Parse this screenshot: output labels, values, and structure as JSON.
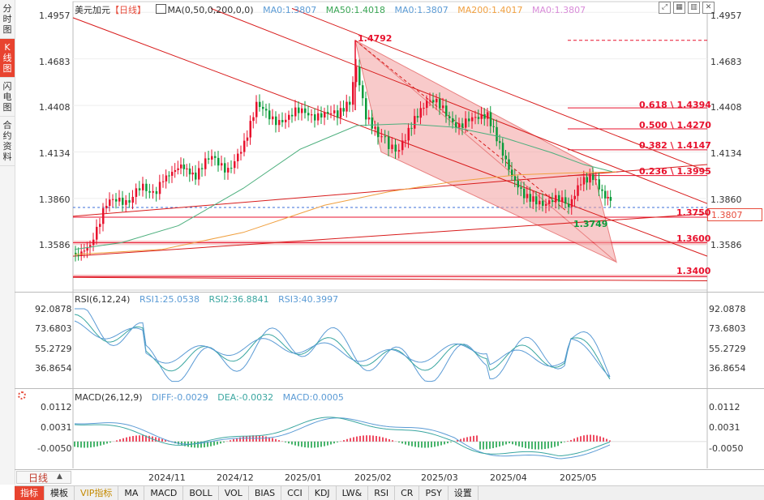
{
  "sidebar": {
    "items": [
      {
        "label": "分时图",
        "active": false
      },
      {
        "label": "K线图",
        "active": true
      },
      {
        "label": "闪电图",
        "active": false
      },
      {
        "label": "合约资料",
        "active": false
      }
    ]
  },
  "header": {
    "symbol": "美元加元",
    "period_tag": "【日线】",
    "ma_params": "MA(0,50,0,200,0,0)",
    "ma_values": [
      {
        "label": "MA0:1.3807",
        "color": "#5b9bd5"
      },
      {
        "label": "MA50:1.4018",
        "color": "#3aa655"
      },
      {
        "label": "MA0:1.3807",
        "color": "#5b9bd5"
      },
      {
        "label": "MA200:1.4017",
        "color": "#f0a040"
      },
      {
        "label": "MA0:1.3807",
        "color": "#d98cd9"
      }
    ]
  },
  "colors": {
    "up": "#e8112d",
    "down": "#0a9b3a",
    "ma50": "#4caf7d",
    "ma200": "#f0a040",
    "fib": "#e8112d",
    "channel": "#d81b1b",
    "shade": "#f3a0a0"
  },
  "price_axis": {
    "ticks": [
      "1.4957",
      "1.4683",
      "1.4408",
      "1.4134",
      "1.3860",
      "1.3586"
    ],
    "current": "1.3807"
  },
  "annotations": {
    "high_label": "1.4792",
    "low_label": "1.3749",
    "fib_levels": [
      {
        "label": "0.618 \\ 1.4394",
        "value": 1.4394
      },
      {
        "label": "0.500 \\ 1.4270",
        "value": 1.427
      },
      {
        "label": "0.382 \\ 1.4147",
        "value": 1.4147
      },
      {
        "label": "0.236 \\ 1.3995",
        "value": 1.3995
      }
    ],
    "levels": [
      {
        "label": "1.3750",
        "value": 1.375
      },
      {
        "label": "1.3600",
        "value": 1.36
      },
      {
        "label": "1.3400",
        "value": 1.34
      }
    ]
  },
  "rsi": {
    "header": "RSI(6,12,24)",
    "values": [
      {
        "label": "RSI1:25.0538",
        "color": "#5b9bd5"
      },
      {
        "label": "RSI2:36.8841",
        "color": "#3aa6a0"
      },
      {
        "label": "RSI3:40.3997",
        "color": "#5b9bd5"
      }
    ],
    "ticks": [
      "92.0878",
      "73.6803",
      "55.2729",
      "36.8654"
    ]
  },
  "macd": {
    "header": "MACD(26,12,9)",
    "values": [
      {
        "label": "DIFF:-0.0029",
        "color": "#5b9bd5"
      },
      {
        "label": "DEA:-0.0032",
        "color": "#3aa6a0"
      },
      {
        "label": "MACD:0.0005",
        "color": "#5b9bd5"
      }
    ],
    "ticks": [
      "0.0112",
      "0.0031",
      "-0.0050"
    ]
  },
  "time_axis": {
    "period_label": "日线",
    "ticks": [
      "2024/11",
      "2024/12",
      "2025/01",
      "2025/02",
      "2025/03",
      "2025/04",
      "2025/05"
    ]
  },
  "bottom_tabs": [
    "指标",
    "模板",
    "VIP指标",
    "MA",
    "MACD",
    "BOLL",
    "VOL",
    "BIAS",
    "CCI",
    "KDJ",
    "LW&",
    "RSI",
    "CR",
    "PSY",
    "设置"
  ],
  "chart_data": {
    "type": "candlestick",
    "title": "美元加元【日线】",
    "ylim": [
      1.332,
      1.502
    ],
    "key_points": {
      "high": 1.4792,
      "low": 1.3749,
      "last": 1.3807
    },
    "moving_averages": {
      "MA50": 1.4018,
      "MA200": 1.4017
    },
    "x_ticks": [
      "2024/11",
      "2024/12",
      "2025/01",
      "2025/02",
      "2025/03",
      "2025/04",
      "2025/05"
    ]
  }
}
